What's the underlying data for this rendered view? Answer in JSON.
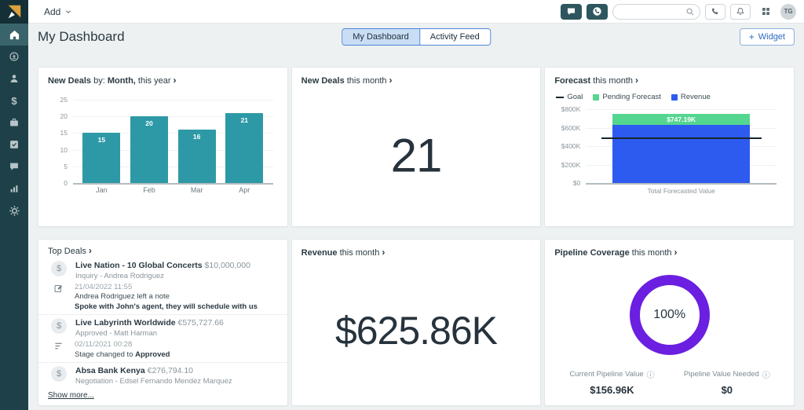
{
  "icons": {
    "dollar": "$",
    "info": "ⓘ",
    "chevron": "›",
    "plus": "+"
  },
  "topbar": {
    "add_label": "Add",
    "search_value": "",
    "avatar_initials": "TG"
  },
  "header": {
    "title": "My Dashboard",
    "tabs": [
      {
        "label": "My Dashboard"
      },
      {
        "label": "Activity Feed"
      }
    ],
    "active_tab": "My Dashboard",
    "widget_button_label": "Widget"
  },
  "cards": {
    "new_deals_by_month": {
      "title": {
        "bold1": "New Deals",
        "mid": " by: ",
        "bold2": "Month,",
        "rest": " this year"
      },
      "chart_data": {
        "type": "bar",
        "categories": [
          "Jan",
          "Feb",
          "Mar",
          "Apr"
        ],
        "values": [
          15,
          20,
          16,
          21
        ],
        "ylim": [
          0,
          25
        ],
        "yticks_top_to_bottom": [
          "25",
          "20",
          "15",
          "10",
          "5",
          "0"
        ],
        "bar_color": "#2E99A6",
        "grid": true
      }
    },
    "new_deals_this_month": {
      "title": {
        "bold1": "New Deals",
        "rest": " this month"
      },
      "value": "21"
    },
    "forecast": {
      "title": {
        "bold1": "Forecast",
        "rest": " this month"
      },
      "chart_data": {
        "type": "stacked-bar",
        "categories": [
          "Total Forecasted Value"
        ],
        "series": [
          {
            "name": "Revenue",
            "value": 625.86,
            "color": "#2D5BF0"
          },
          {
            "name": "Pending Forecast",
            "value": 121.33,
            "color": "#55D690"
          }
        ],
        "goal_line": {
          "name": "Goal",
          "value": 480,
          "color": "#16262E"
        },
        "total_label": "$747.19K",
        "ylim": [
          0,
          800
        ],
        "yticks_top_to_bottom": [
          "$800K",
          "$600K",
          "$400K",
          "$200K",
          "$0"
        ],
        "xlabel": "Total Forecasted Value",
        "legend": [
          "Goal",
          "Pending Forecast",
          "Revenue"
        ]
      }
    },
    "top_deals": {
      "title": "Top Deals",
      "items": [
        {
          "kind": "deal",
          "title": "Live Nation - 10 Global Concerts",
          "amount": "$10,000,000",
          "subtitle": "Inquiry - Andrea Rodriguez"
        },
        {
          "kind": "activity",
          "icon": "note",
          "timestamp": "21/04/2022 11:55",
          "text": "Andrea Rodriguez left a note",
          "bold_text": "Spoke with John's agent, they will schedule with us"
        },
        {
          "kind": "deal",
          "title": "Live Labyrinth Worldwide",
          "amount": "€575,727.66",
          "subtitle": "Approved - Matt Harman"
        },
        {
          "kind": "activity",
          "icon": "stage-change",
          "timestamp": "02/11/2021 00:28",
          "text": "Stage changed to ",
          "bold_text": "Approved"
        },
        {
          "kind": "deal",
          "title": "Absa Bank Kenya",
          "amount": "€276,794.10",
          "subtitle": "Negotiation - Edsel Fernando Mendez Marquez"
        }
      ],
      "show_more_label": "Show more..."
    },
    "revenue": {
      "title": {
        "bold1": "Revenue",
        "rest": " this month"
      },
      "value": "$625.86K"
    },
    "pipeline_coverage": {
      "title": {
        "bold1": "Pipeline Coverage",
        "rest": " this month"
      },
      "percent": "100%",
      "ring_color": "#6B1FE0",
      "stats": [
        {
          "label": "Current Pipeline Value",
          "value": "$156.96K"
        },
        {
          "label": "Pipeline Value Needed",
          "value": "$0"
        }
      ]
    }
  },
  "colors": {
    "accent_teal": "#2E99A6",
    "chart_blue": "#2D5BF0",
    "chart_green": "#55D690",
    "donut_purple": "#6B1FE0",
    "sidebar_bg": "#1E4149",
    "sidebar_active": "#3A646C",
    "topbar_logo_bg": "#142F36",
    "tab_active_bg": "#C9DDF4",
    "tab_border": "#4E86D8",
    "button_blue": "#2D6BC4"
  }
}
